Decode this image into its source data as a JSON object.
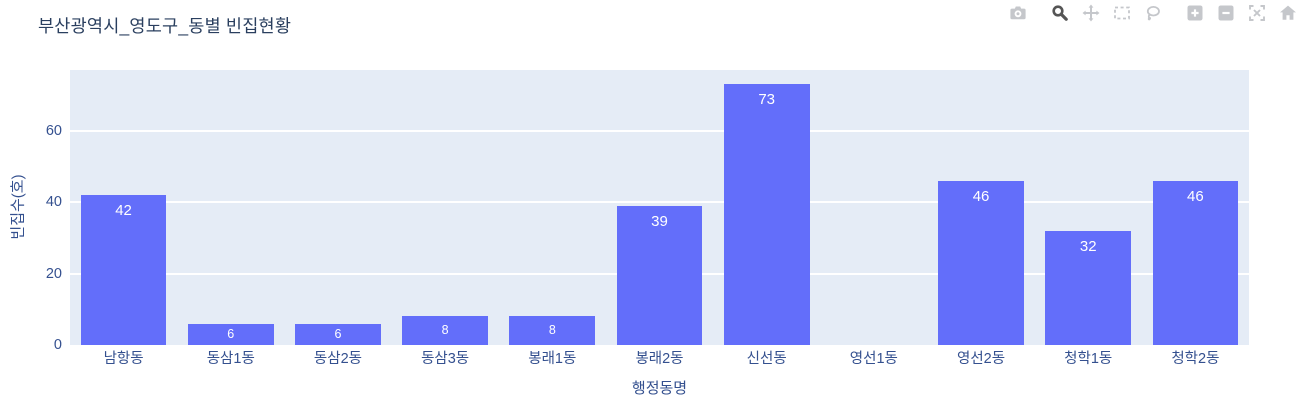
{
  "header": {
    "title": "부산광역시_영도구_동별 빈집현황"
  },
  "modebar": {
    "active": "zoom-icon",
    "icons": [
      "camera-icon",
      "zoom-icon",
      "pan-icon",
      "box-select-icon",
      "lasso-select-icon",
      "zoom-in-icon",
      "zoom-out-icon",
      "autoscale-icon",
      "reset-axes-home-icon"
    ]
  },
  "chart_data": {
    "type": "bar",
    "title": "부산광역시_영도구_동별 빈집현황",
    "xlabel": "행정동명",
    "ylabel": "빈집수(호)",
    "categories": [
      "남항동",
      "동삼1동",
      "동삼2동",
      "동삼3동",
      "봉래1동",
      "봉래2동",
      "신선동",
      "영선1동",
      "영선2동",
      "청학1동",
      "청학2동"
    ],
    "values": [
      42,
      6,
      6,
      8,
      8,
      39,
      73,
      0,
      46,
      32,
      46
    ],
    "bar_labels": [
      "42",
      "6",
      "6",
      "8",
      "8",
      "39",
      "73",
      "",
      "46",
      "32",
      "46"
    ],
    "yticks": [
      0,
      20,
      40,
      60
    ],
    "ylim": [
      0,
      77
    ],
    "grid": true,
    "legend": "none",
    "colors": {
      "bar": "#636EFA",
      "plot_background": "#E5ECF6",
      "gridline": "#FFFFFF",
      "title_text": "#2A3F5F",
      "axis_text": "#34508F",
      "bar_label_text": "#FFFFFF",
      "modebar_inactive": "#C5C7CB",
      "modebar_active": "#555555"
    }
  }
}
